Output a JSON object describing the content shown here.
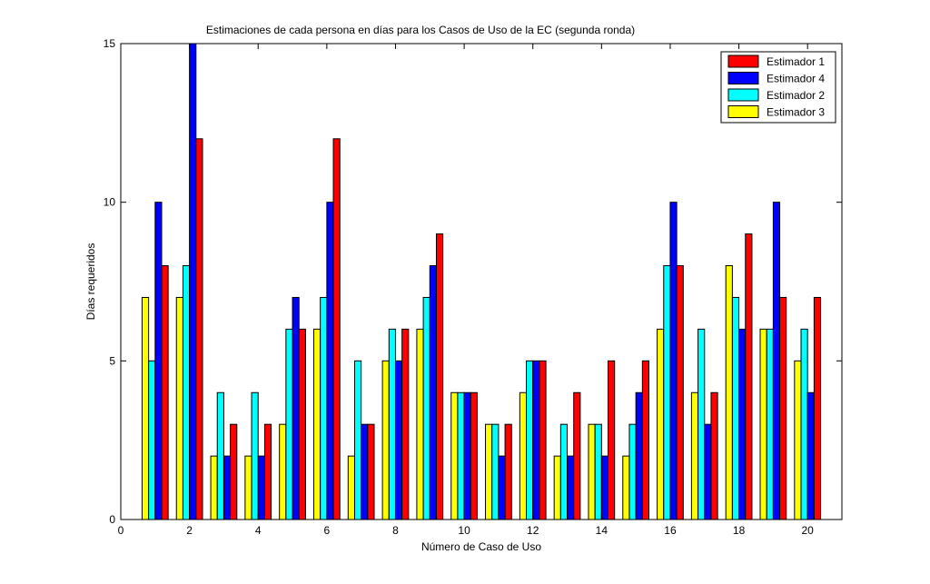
{
  "chart_data": {
    "type": "bar",
    "title": "Estimaciones de cada persona en días para los Casos de Uso de la EC  (segunda ronda)",
    "xlabel": "Número de Caso de Uso",
    "ylabel": "Días requeridos",
    "xlim": [
      0,
      21
    ],
    "ylim": [
      0,
      15
    ],
    "xticks": [
      0,
      2,
      4,
      6,
      8,
      10,
      12,
      14,
      16,
      18,
      20
    ],
    "yticks": [
      0,
      5,
      10,
      15
    ],
    "grid": false,
    "legend_position": "top-right",
    "categories": [
      1,
      2,
      3,
      4,
      5,
      6,
      7,
      8,
      9,
      10,
      11,
      12,
      13,
      14,
      15,
      16,
      17,
      18,
      19,
      20
    ],
    "series": [
      {
        "name": "Estimador 3",
        "color": "#ffff00",
        "values": [
          7,
          7,
          2,
          2,
          3,
          6,
          2,
          5,
          6,
          4,
          3,
          4,
          2,
          3,
          2,
          6,
          4,
          8,
          6,
          5
        ]
      },
      {
        "name": "Estimador 2",
        "color": "#00ffff",
        "values": [
          5,
          8,
          4,
          4,
          6,
          7,
          5,
          6,
          7,
          4,
          3,
          5,
          3,
          3,
          3,
          8,
          6,
          7,
          6,
          6
        ]
      },
      {
        "name": "Estimador 4",
        "color": "#0000ff",
        "values": [
          10,
          15,
          2,
          2,
          7,
          10,
          3,
          5,
          8,
          4,
          2,
          5,
          2,
          2,
          4,
          10,
          3,
          6,
          10,
          4
        ]
      },
      {
        "name": "Estimador 1",
        "color": "#ff0000",
        "values": [
          8,
          12,
          3,
          3,
          6,
          12,
          3,
          6,
          9,
          4,
          3,
          5,
          4,
          5,
          5,
          8,
          4,
          9,
          7,
          7
        ]
      }
    ],
    "legend_order": [
      "Estimador 1",
      "Estimador 4",
      "Estimador 2",
      "Estimador 3"
    ]
  }
}
